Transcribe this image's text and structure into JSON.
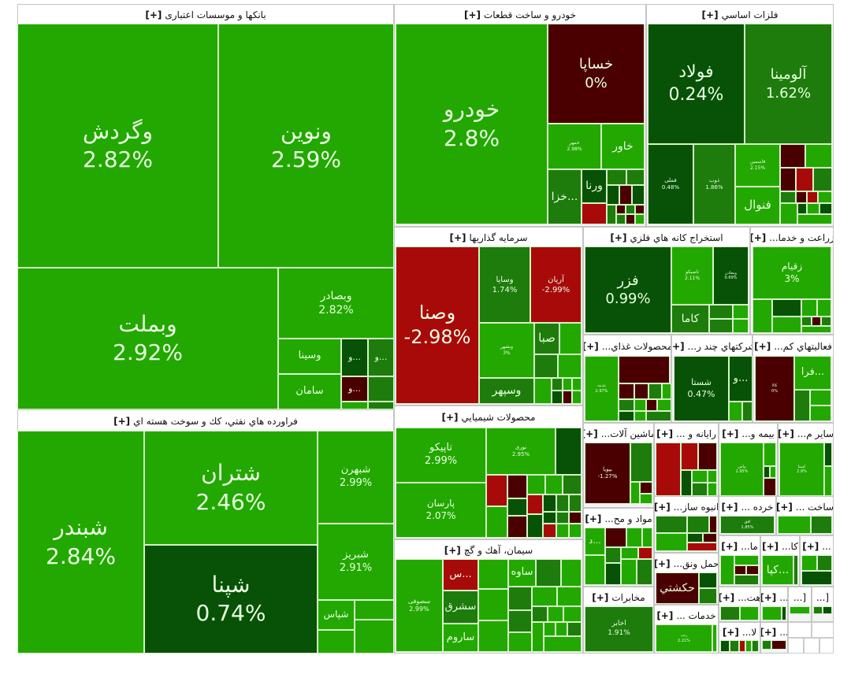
{
  "expand_label": "[+]",
  "colors": {
    "g": "#22a800",
    "m": "#1d7c0c",
    "d": "#075206",
    "r": "#a80a0a",
    "dr": "#4a0000"
  },
  "sectors": [
    {
      "title": "بانکها و موسسات اعتباری",
      "stocks": [
        {
          "name": "وگردش",
          "change": "2.82%",
          "color": "g"
        },
        {
          "name": "ونوین",
          "change": "2.59%",
          "color": "g"
        },
        {
          "name": "وبملت",
          "change": "2.92%",
          "color": "g"
        },
        {
          "name": "وبصادر",
          "change": "2.82%",
          "color": "g"
        },
        {
          "name": "وسینا",
          "change": "",
          "color": "g"
        },
        {
          "name": "سامان",
          "change": "",
          "color": "g"
        },
        {
          "name": "و...",
          "change": "",
          "color": "d"
        },
        {
          "name": "و...",
          "change": "",
          "color": "m"
        },
        {
          "name": "و...",
          "change": "",
          "color": "dr"
        }
      ]
    },
    {
      "title": "فراورده هاي نفتي، كك و سوخت هسته اي",
      "stocks": [
        {
          "name": "شبندر",
          "change": "2.84%",
          "color": "g"
        },
        {
          "name": "شتران",
          "change": "2.46%",
          "color": "g"
        },
        {
          "name": "شپنا",
          "change": "0.74%",
          "color": "d"
        },
        {
          "name": "شبهرن",
          "change": "2.99%",
          "color": "g"
        },
        {
          "name": "شبریز",
          "change": "2.91%",
          "color": "g"
        },
        {
          "name": "شپاس",
          "change": "",
          "color": "g"
        }
      ]
    },
    {
      "title": "خودرو و ساخت قطعات",
      "stocks": [
        {
          "name": "خودرو",
          "change": "2.8%",
          "color": "g"
        },
        {
          "name": "خساپا",
          "change": "0%",
          "color": "dr"
        },
        {
          "name": "خمهر",
          "change": "2.98%",
          "color": "g"
        },
        {
          "name": "خاور",
          "change": "",
          "color": "g"
        },
        {
          "name": "خزا...",
          "change": "",
          "color": "m"
        },
        {
          "name": "ورنا",
          "change": "",
          "color": "d"
        }
      ]
    },
    {
      "title": "فلزات اساسي",
      "stocks": [
        {
          "name": "فولاد",
          "change": "0.24%",
          "color": "d"
        },
        {
          "name": "آلومینا",
          "change": "1.62%",
          "color": "m"
        },
        {
          "name": "فملی",
          "change": "0.48%",
          "color": "d"
        },
        {
          "name": "ذوب",
          "change": "1.86%",
          "color": "m"
        },
        {
          "name": "فاسمین",
          "change": "2.15%",
          "color": "g"
        },
        {
          "name": "فنوال",
          "change": "",
          "color": "g"
        }
      ]
    },
    {
      "title": "سرمايه گذاريها",
      "stocks": [
        {
          "name": "وصنا",
          "change": "-2.98%",
          "color": "r"
        },
        {
          "name": "وسایا",
          "change": "1.74%",
          "color": "m"
        },
        {
          "name": "آریان",
          "change": "-2.99%",
          "color": "r"
        },
        {
          "name": "وبشهر",
          "change": "3%",
          "color": "g"
        },
        {
          "name": "صبا",
          "change": "",
          "color": "m"
        },
        {
          "name": "وسپهر",
          "change": "",
          "color": "m"
        }
      ]
    },
    {
      "title": "استخراج كانه هاي فلزي",
      "stocks": [
        {
          "name": "فزر",
          "change": "0.99%",
          "color": "d"
        },
        {
          "name": "تاصیکو",
          "change": "2.11%",
          "color": "g"
        },
        {
          "name": "ومعادن",
          "change": "0.69%",
          "color": "d"
        },
        {
          "name": "کاما",
          "change": "",
          "color": "m"
        }
      ]
    },
    {
      "title": "زراعت و خدما...",
      "stocks": [
        {
          "name": "زقیام",
          "change": "3%",
          "color": "g"
        }
      ]
    },
    {
      "title": "محصولات غذاي...",
      "stocks": [
        {
          "name": "غدینه",
          "change": "2.97%",
          "color": "g"
        }
      ]
    },
    {
      "title": "شركتهاي چند ر...",
      "stocks": [
        {
          "name": "شستا",
          "change": "0.47%",
          "color": "d"
        },
        {
          "name": "و...",
          "change": "",
          "color": "d"
        }
      ]
    },
    {
      "title": "فعاليتهاي كم...",
      "stocks": [
        {
          "name": "کالا",
          "change": "0%",
          "color": "dr"
        },
        {
          "name": "فرا...",
          "change": "",
          "color": "g"
        }
      ]
    },
    {
      "title": "محصولات شيميايي",
      "stocks": [
        {
          "name": "تاپیکو",
          "change": "2.99%",
          "color": "g"
        },
        {
          "name": "پارسان",
          "change": "2.07%",
          "color": "g"
        },
        {
          "name": "نوری",
          "change": "2.95%",
          "color": "g"
        },
        {
          "name": "",
          "change": "",
          "color": "d"
        }
      ]
    },
    {
      "title": "سيمان، آهك و گچ",
      "stocks": [
        {
          "name": "سصوفی",
          "change": "2.99%",
          "color": "g"
        },
        {
          "name": "س...",
          "change": "",
          "color": "r"
        },
        {
          "name": "سشرق",
          "change": "",
          "color": "m"
        },
        {
          "name": "ساروم",
          "change": "",
          "color": "g"
        },
        {
          "name": "ساوه",
          "change": "",
          "color": "g"
        }
      ]
    },
    {
      "title": "ماشين آلات...",
      "stocks": [
        {
          "name": "بپویا",
          "change": "-1.27%",
          "color": "dr"
        }
      ]
    },
    {
      "title": "رايانه و ...",
      "stocks": []
    },
    {
      "title": "بيمه و...",
      "stocks": [
        {
          "name": "بپاس",
          "change": "2.95%",
          "color": "g"
        }
      ]
    },
    {
      "title": "ساير م...",
      "stocks": [
        {
          "name": "کیمیا",
          "change": "2.9%",
          "color": "g"
        }
      ]
    },
    {
      "title": "انبوه ساز...",
      "stocks": []
    },
    {
      "title": "خرده ...",
      "stocks": [
        {
          "name": "افق",
          "change": "1.85%",
          "color": "m"
        }
      ]
    },
    {
      "title": "ساخت ...",
      "stocks": []
    },
    {
      "title": "مواد و مح...",
      "stocks": [
        {
          "name": "د...",
          "change": "",
          "color": "g"
        }
      ]
    },
    {
      "title": "مخابرات",
      "stocks": [
        {
          "name": "اخابر",
          "change": "1.91%",
          "color": "m"
        }
      ]
    },
    {
      "title": "حمل ونق...",
      "stocks": [
        {
          "name": "حکشتي",
          "change": "",
          "color": "dr"
        }
      ]
    },
    {
      "title": "خدمات ...",
      "stocks": [
        {
          "name": "رتب",
          "change": "2.21%",
          "color": "g"
        }
      ]
    },
    {
      "title": "ما...",
      "stocks": []
    },
    {
      "title": "کا...",
      "stocks": [
        {
          "name": "کپا...",
          "change": "",
          "color": "g"
        }
      ]
    },
    {
      "title": "...",
      "stocks": []
    },
    {
      "title": "هت...",
      "stocks": []
    },
    {
      "title": "...",
      "stocks": []
    },
    {
      "title": "[...",
      "stocks": [],
      "no_expand": true
    },
    {
      "title": "[...",
      "stocks": [],
      "no_expand": true
    },
    {
      "title": "لا...",
      "stocks": []
    },
    {
      "title": "...",
      "stocks": []
    }
  ]
}
